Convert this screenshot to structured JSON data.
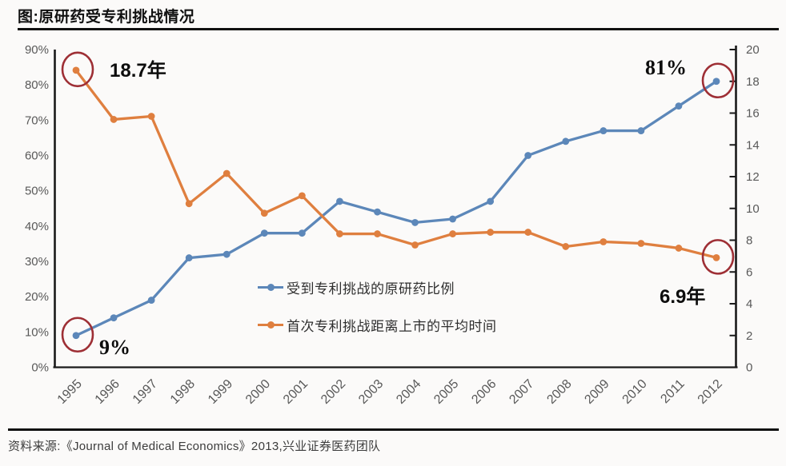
{
  "header": {
    "title": "图:原研药受专利挑战情况"
  },
  "footer": {
    "source": "资料来源:《Journal of Medical Economics》2013,兴业证券医药团队"
  },
  "legend": {
    "items": [
      {
        "label": "受到专利挑战的原研药比例",
        "color": "#5c87b9"
      },
      {
        "label": "首次专利挑战距离上市的平均时间",
        "color": "#df7f3f"
      }
    ]
  },
  "colors": {
    "blue_series": "#5c87b9",
    "orange_series": "#df7f3f",
    "annotation_circle": "#9e2f35",
    "axis_line": "#1a1a1a",
    "tick_label": "#595959",
    "background": "#fbfaf9"
  },
  "chart_data": {
    "type": "line",
    "title": "图:原研药受专利挑战情况",
    "x": [
      "1995",
      "1996",
      "1997",
      "1998",
      "1999",
      "2000",
      "2001",
      "2002",
      "2003",
      "2004",
      "2005",
      "2006",
      "2007",
      "2008",
      "2009",
      "2010",
      "2011",
      "2012"
    ],
    "series": [
      {
        "name": "受到专利挑战的原研药比例",
        "axis": "left",
        "unit": "%",
        "color": "#5c87b9",
        "values": [
          9,
          14,
          19,
          31,
          32,
          38,
          38,
          47,
          44,
          41,
          42,
          47,
          60,
          64,
          67,
          67,
          74,
          81
        ]
      },
      {
        "name": "首次专利挑战距离上市的平均时间",
        "axis": "right",
        "unit": "年",
        "color": "#df7f3f",
        "values": [
          18.7,
          15.6,
          15.8,
          10.3,
          12.2,
          9.7,
          10.8,
          8.4,
          8.4,
          7.7,
          8.4,
          8.5,
          8.5,
          7.6,
          7.9,
          7.8,
          7.5,
          6.9
        ]
      }
    ],
    "left_axis": {
      "min": 0,
      "max": 90,
      "step": 10,
      "tick_labels": [
        "0%",
        "10%",
        "20%",
        "30%",
        "40%",
        "50%",
        "60%",
        "70%",
        "80%",
        "90%"
      ]
    },
    "right_axis": {
      "min": 0,
      "max": 20,
      "step": 2,
      "tick_labels": [
        "0",
        "2",
        "4",
        "6",
        "8",
        "10",
        "12",
        "14",
        "16",
        "18",
        "20"
      ]
    },
    "grid": false,
    "legend_position": "inside-lower-middle",
    "annotations": [
      {
        "label": "18.7年",
        "series": 1,
        "point": "first",
        "circled": true
      },
      {
        "label": "9%",
        "series": 0,
        "point": "first",
        "circled": true
      },
      {
        "label": "81%",
        "series": 0,
        "point": "last",
        "circled": true
      },
      {
        "label": "6.9年",
        "series": 1,
        "point": "last",
        "circled": true
      }
    ]
  }
}
